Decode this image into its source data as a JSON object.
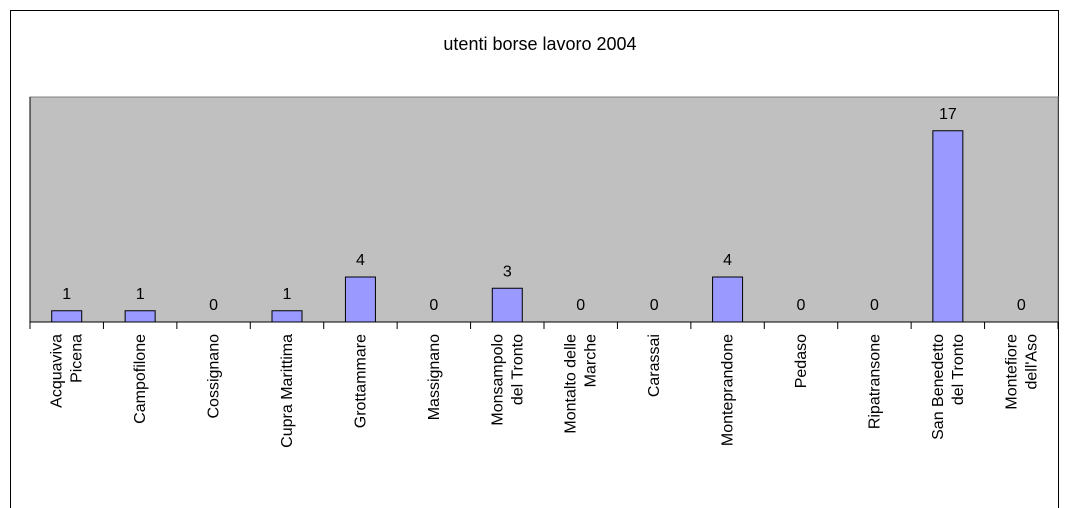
{
  "chart_data": {
    "type": "bar",
    "title": "utenti borse lavoro 2004",
    "categories": [
      "Acquaviva\nPicena",
      "Campofilone",
      "Cossignano",
      "Cupra Marittima",
      "Grottammare",
      "Massignano",
      "Monsampolo\ndel Tronto",
      "Montalto delle\nMarche",
      "Carassai",
      "Monteprandone",
      "Pedaso",
      "Ripatransone",
      "San Benedetto\ndel Tronto",
      "Montefiore\ndell'Aso"
    ],
    "values": [
      1,
      1,
      0,
      1,
      4,
      0,
      3,
      0,
      0,
      4,
      0,
      0,
      17,
      0
    ],
    "color": "#9999ff",
    "ylim": [
      0,
      20
    ]
  }
}
